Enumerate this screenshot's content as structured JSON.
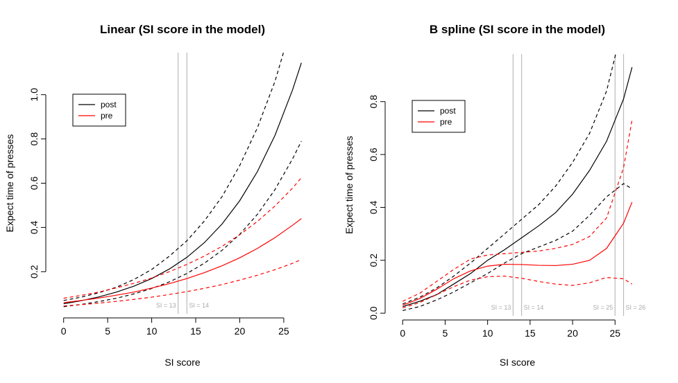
{
  "chart_data": [
    {
      "type": "line",
      "title": "Linear (SI score in the model)",
      "xlabel": "SI score",
      "ylabel": "Expect time of presses",
      "x": [
        0,
        2,
        4,
        6,
        8,
        10,
        12,
        14,
        16,
        18,
        20,
        22,
        24,
        26,
        27
      ],
      "series": [
        {
          "name": "post",
          "color": "#000000",
          "values": [
            0.055,
            0.069,
            0.086,
            0.108,
            0.135,
            0.169,
            0.212,
            0.265,
            0.332,
            0.416,
            0.521,
            0.652,
            0.816,
            1.022,
            1.144
          ],
          "upper": [
            0.07,
            0.085,
            0.105,
            0.13,
            0.165,
            0.21,
            0.27,
            0.34,
            0.43,
            0.54,
            0.68,
            0.85,
            1.06,
            1.33,
            1.49
          ],
          "lower": [
            0.042,
            0.052,
            0.065,
            0.08,
            0.1,
            0.124,
            0.154,
            0.192,
            0.239,
            0.297,
            0.369,
            0.459,
            0.571,
            0.71,
            0.79
          ]
        },
        {
          "name": "pre",
          "color": "#ff0000",
          "values": [
            0.06,
            0.07,
            0.081,
            0.094,
            0.108,
            0.126,
            0.146,
            0.169,
            0.196,
            0.227,
            0.263,
            0.305,
            0.354,
            0.41,
            0.44
          ],
          "upper": [
            0.08,
            0.093,
            0.108,
            0.127,
            0.148,
            0.171,
            0.2,
            0.233,
            0.271,
            0.315,
            0.367,
            0.427,
            0.497,
            0.578,
            0.625
          ],
          "lower": [
            0.045,
            0.051,
            0.058,
            0.066,
            0.075,
            0.085,
            0.097,
            0.11,
            0.125,
            0.142,
            0.162,
            0.184,
            0.209,
            0.238,
            0.255
          ]
        }
      ],
      "vlines": [
        {
          "value": 13,
          "label": "SI = 13"
        },
        {
          "value": 14,
          "label": "SI = 14"
        }
      ],
      "vline_color": "#bbbbbb",
      "xlim": [
        -1.08,
        28.08
      ],
      "ylim": [
        0.01,
        1.19
      ],
      "xticks": [
        0,
        5,
        10,
        15,
        20,
        25
      ],
      "yticks": [
        0.2,
        0.4,
        0.6,
        0.8,
        {
          "value": 1,
          "label": "1.0"
        }
      ],
      "legend": "topleft"
    },
    {
      "type": "line",
      "title": "B spline (SI score in the model)",
      "xlabel": "SI score",
      "ylabel": "Expect time of presses",
      "x": [
        0,
        2,
        4,
        6,
        8,
        10,
        12,
        14,
        16,
        18,
        20,
        22,
        24,
        26,
        27
      ],
      "series": [
        {
          "name": "post",
          "color": "#000000",
          "values": [
            0.025,
            0.045,
            0.07,
            0.11,
            0.15,
            0.2,
            0.24,
            0.285,
            0.33,
            0.38,
            0.45,
            0.54,
            0.65,
            0.81,
            0.93
          ],
          "upper": [
            0.035,
            0.06,
            0.095,
            0.14,
            0.19,
            0.245,
            0.3,
            0.355,
            0.41,
            0.48,
            0.57,
            0.68,
            0.84,
            1.1,
            1.2
          ],
          "lower": [
            0.01,
            0.025,
            0.05,
            0.08,
            0.115,
            0.15,
            0.19,
            0.225,
            0.25,
            0.275,
            0.31,
            0.37,
            0.44,
            0.49,
            0.47
          ]
        },
        {
          "name": "pre",
          "color": "#ff0000",
          "values": [
            0.03,
            0.055,
            0.09,
            0.13,
            0.16,
            0.178,
            0.185,
            0.184,
            0.181,
            0.18,
            0.185,
            0.2,
            0.245,
            0.34,
            0.42
          ],
          "upper": [
            0.045,
            0.075,
            0.12,
            0.165,
            0.205,
            0.22,
            0.225,
            0.23,
            0.235,
            0.245,
            0.26,
            0.29,
            0.36,
            0.55,
            0.73
          ],
          "lower": [
            0.02,
            0.04,
            0.07,
            0.1,
            0.125,
            0.138,
            0.14,
            0.132,
            0.12,
            0.11,
            0.105,
            0.115,
            0.135,
            0.13,
            0.11
          ]
        }
      ],
      "vlines": [
        {
          "value": 13,
          "label": "SI = 13"
        },
        {
          "value": 14,
          "label": "SI = 14"
        },
        {
          "value": 25,
          "label": "SI = 25"
        },
        {
          "value": 26,
          "label": "SI = 26"
        }
      ],
      "vline_color": "#bbbbbb",
      "xlim": [
        -1.08,
        28.08
      ],
      "ylim": [
        -0.01,
        0.98
      ],
      "xticks": [
        0,
        5,
        10,
        15,
        20,
        25
      ],
      "yticks": [
        {
          "value": 0,
          "label": "0.0"
        },
        0.2,
        0.4,
        0.6,
        0.8
      ],
      "legend": "topleft"
    }
  ]
}
